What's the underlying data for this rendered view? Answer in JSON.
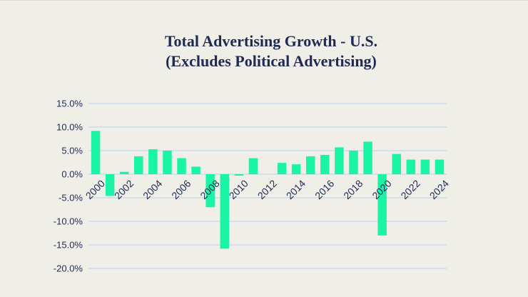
{
  "chart_data": {
    "type": "bar",
    "title": "Total Advertising Growth - U.S.",
    "subtitle": "(Excludes Political Advertising)",
    "xlabel": "",
    "ylabel": "",
    "ylim": [
      -20,
      15
    ],
    "yticks": [
      15,
      10,
      5,
      0,
      -5,
      -10,
      -15,
      -20
    ],
    "ytick_labels": [
      "15.0%",
      "10.0%",
      "5.0%",
      "0.0%",
      "-5.0%",
      "-10.0%",
      "-15.0%",
      "-20.0%"
    ],
    "categories": [
      "2000",
      "2001",
      "2002",
      "2003",
      "2004",
      "2005",
      "2006",
      "2007",
      "2008",
      "2009",
      "2010",
      "2011",
      "2012",
      "2013",
      "2014",
      "2015",
      "2016",
      "2017",
      "2018",
      "2019",
      "2020",
      "2021",
      "2022",
      "2023",
      "2024"
    ],
    "xtick_labels": [
      "2000",
      "2002",
      "2004",
      "2006",
      "2008",
      "2010",
      "2012",
      "2014",
      "2016",
      "2018",
      "2020",
      "2022",
      "2024"
    ],
    "values": [
      9.2,
      -4.6,
      0.5,
      3.8,
      5.3,
      5.0,
      3.4,
      1.6,
      -7.0,
      -15.8,
      -0.3,
      3.4,
      0.0,
      2.4,
      2.1,
      3.8,
      4.1,
      5.7,
      5.0,
      6.9,
      -13.0,
      4.3,
      3.1,
      3.1,
      3.1
    ],
    "grid": true,
    "bar_color": "#19f5a5",
    "grid_color": "#bcd0e8",
    "text_color": "#1f2a52"
  }
}
